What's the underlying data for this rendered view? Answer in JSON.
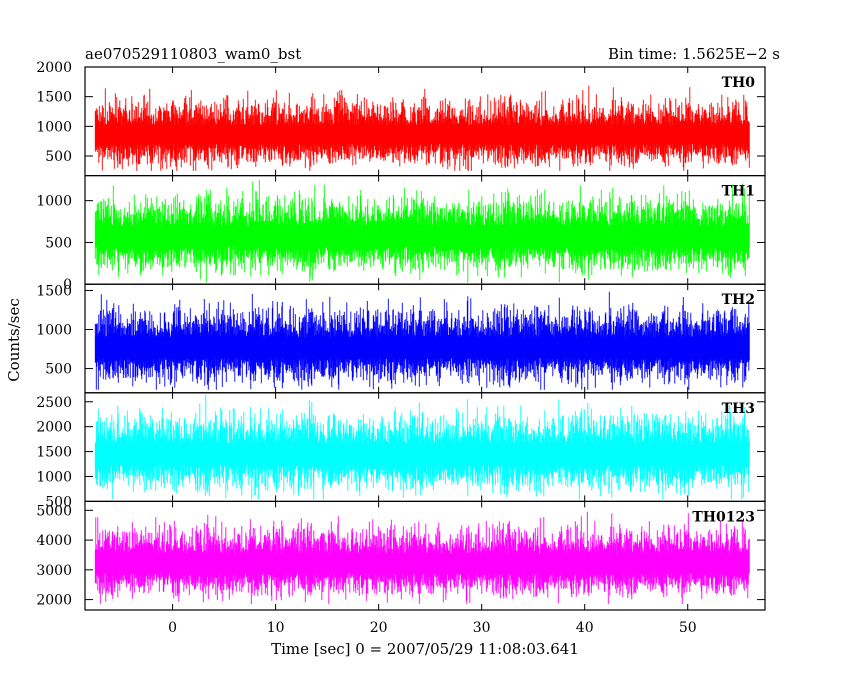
{
  "header": {
    "left_title": "ae070529110803_wam0_bst",
    "right_title": "Bin time: 1.5625E−2 s"
  },
  "chart_data": {
    "type": "line",
    "xlabel": "Time [sec] 0 = 2007/05/29 11:08:03.641",
    "ylabel": "Counts/sec",
    "xlim": [
      -8.5,
      57.5
    ],
    "x_ticks": [
      0,
      10,
      20,
      30,
      40,
      50
    ],
    "x_range": [
      -7.5,
      56.0
    ],
    "panels": [
      {
        "name": "TH0",
        "color": "#ff0000",
        "ylim": [
          170,
          2000
        ],
        "y_ticks": [
          500,
          1000,
          1500,
          2000
        ],
        "baseline": 900,
        "spread": 380,
        "max": 1950,
        "min": 250
      },
      {
        "name": "TH1",
        "color": "#00ff00",
        "ylim": [
          0,
          1300
        ],
        "y_ticks": [
          0,
          500,
          1000
        ],
        "baseline": 600,
        "spread": 300,
        "max": 1280,
        "min": 20
      },
      {
        "name": "TH2",
        "color": "#0000ff",
        "ylim": [
          190,
          1580
        ],
        "y_ticks": [
          500,
          1000,
          1500
        ],
        "baseline": 800,
        "spread": 330,
        "max": 1500,
        "min": 230
      },
      {
        "name": "TH3",
        "color": "#00ffff",
        "ylim": [
          500,
          2680
        ],
        "y_ticks": [
          500,
          1000,
          1500,
          2000,
          2500
        ],
        "baseline": 1500,
        "spread": 520,
        "max": 2650,
        "min": 540
      },
      {
        "name": "TH0123",
        "color": "#ff00ff",
        "ylim": [
          1650,
          5300
        ],
        "y_ticks": [
          2000,
          3000,
          4000,
          5000
        ],
        "baseline": 3300,
        "spread": 800,
        "max": 5250,
        "min": 1850
      }
    ]
  }
}
